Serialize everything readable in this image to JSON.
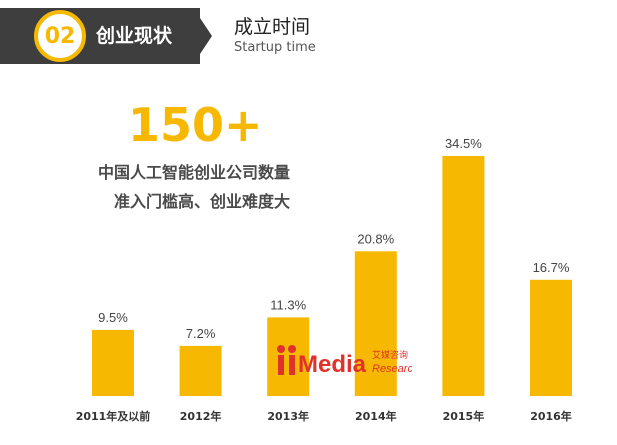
{
  "header": {
    "badge_number": "02",
    "section_title": "创业现状",
    "subtitle_cn": "成立时间",
    "subtitle_en": "Startup time"
  },
  "annotation": {
    "big_number": "150+",
    "line1": "中国人工智能创业公司数量",
    "line2": "准入门槛高、创业难度大"
  },
  "watermark": {
    "brand": "Media",
    "cn": "艾媒咨询",
    "en": "Research"
  },
  "colors": {
    "accent": "#f6b800",
    "dark": "#3e3e3e",
    "watermark_red": "#e0322b"
  },
  "chart_data": {
    "type": "bar",
    "title": "成立时间",
    "categories": [
      "2011年及以前",
      "2012年",
      "2013年",
      "2014年",
      "2015年",
      "2016年"
    ],
    "values": [
      9.5,
      7.2,
      11.3,
      20.8,
      34.5,
      16.7
    ],
    "value_labels": [
      "9.5%",
      "7.2%",
      "11.3%",
      "20.8%",
      "34.5%",
      "16.7%"
    ],
    "unit": "%",
    "ylim": [
      0,
      34.5
    ],
    "xlabel": "",
    "ylabel": "",
    "grid": false
  }
}
